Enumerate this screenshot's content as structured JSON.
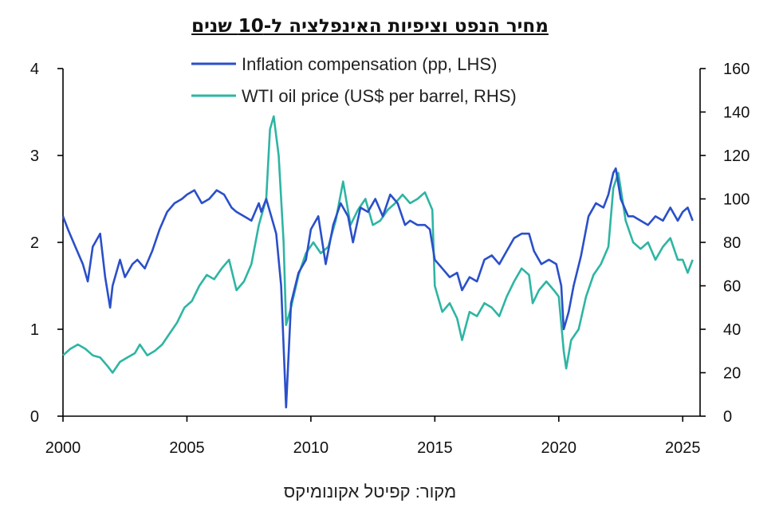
{
  "chart_data": {
    "type": "line",
    "title": "מחיר הנפט וציפיות האינפלציה ל-10 שנים",
    "source": "מקור: קפיטל אקונומיקס",
    "legend_placement": "top-center",
    "grid": false,
    "x_axis": {
      "range": [
        2000,
        2025.7
      ],
      "ticks": [
        "2000",
        "2005",
        "2010",
        "2015",
        "2020",
        "2025"
      ]
    },
    "y_left": {
      "range": [
        0,
        4
      ],
      "ticks": [
        "0",
        "1",
        "2",
        "3",
        "4"
      ]
    },
    "y_right": {
      "range": [
        0,
        160
      ],
      "ticks": [
        "0",
        "20",
        "40",
        "60",
        "80",
        "100",
        "120",
        "140",
        "160"
      ]
    },
    "series": [
      {
        "name": "Inflation compensation (pp, LHS)",
        "axis": "left",
        "color": "#2a4fc9",
        "x": [
          2000.0,
          2000.2,
          2000.5,
          2000.8,
          2001.0,
          2001.2,
          2001.5,
          2001.7,
          2001.9,
          2002.0,
          2002.3,
          2002.5,
          2002.8,
          2003.0,
          2003.3,
          2003.6,
          2003.9,
          2004.2,
          2004.5,
          2004.8,
          2005.0,
          2005.3,
          2005.6,
          2005.9,
          2006.2,
          2006.5,
          2006.8,
          2007.0,
          2007.3,
          2007.6,
          2007.9,
          2008.0,
          2008.2,
          2008.4,
          2008.6,
          2008.8,
          2008.9,
          2009.0,
          2009.2,
          2009.5,
          2009.8,
          2010.0,
          2010.3,
          2010.6,
          2010.9,
          2011.2,
          2011.5,
          2011.7,
          2012.0,
          2012.3,
          2012.6,
          2012.9,
          2013.2,
          2013.5,
          2013.8,
          2014.0,
          2014.3,
          2014.6,
          2014.8,
          2015.0,
          2015.3,
          2015.6,
          2015.9,
          2016.1,
          2016.4,
          2016.7,
          2017.0,
          2017.3,
          2017.6,
          2017.9,
          2018.2,
          2018.5,
          2018.8,
          2019.0,
          2019.3,
          2019.6,
          2019.9,
          2020.1,
          2020.2,
          2020.4,
          2020.6,
          2020.9,
          2021.2,
          2021.5,
          2021.8,
          2022.0,
          2022.2,
          2022.3,
          2022.5,
          2022.8,
          2023.0,
          2023.3,
          2023.6,
          2023.9,
          2024.2,
          2024.5,
          2024.8,
          2025.0,
          2025.2,
          2025.4
        ],
        "values": [
          2.3,
          2.15,
          1.95,
          1.75,
          1.55,
          1.95,
          2.1,
          1.6,
          1.25,
          1.5,
          1.8,
          1.6,
          1.75,
          1.8,
          1.7,
          1.9,
          2.15,
          2.35,
          2.45,
          2.5,
          2.55,
          2.6,
          2.45,
          2.5,
          2.6,
          2.55,
          2.4,
          2.35,
          2.3,
          2.25,
          2.45,
          2.35,
          2.5,
          2.3,
          2.1,
          1.5,
          0.8,
          0.1,
          1.3,
          1.65,
          1.8,
          2.15,
          2.3,
          1.75,
          2.2,
          2.45,
          2.3,
          2.0,
          2.4,
          2.35,
          2.5,
          2.3,
          2.55,
          2.45,
          2.2,
          2.25,
          2.2,
          2.2,
          2.15,
          1.8,
          1.7,
          1.6,
          1.65,
          1.45,
          1.6,
          1.55,
          1.8,
          1.85,
          1.75,
          1.9,
          2.05,
          2.1,
          2.1,
          1.9,
          1.75,
          1.8,
          1.75,
          1.5,
          1.0,
          1.2,
          1.5,
          1.85,
          2.3,
          2.45,
          2.4,
          2.55,
          2.8,
          2.85,
          2.5,
          2.3,
          2.3,
          2.25,
          2.2,
          2.3,
          2.25,
          2.4,
          2.25,
          2.35,
          2.4,
          2.25
        ]
      },
      {
        "name": "WTI oil price (US$ per barrel, RHS)",
        "axis": "right",
        "color": "#2eb5a3",
        "x": [
          2000.0,
          2000.3,
          2000.6,
          2000.9,
          2001.2,
          2001.5,
          2001.8,
          2002.0,
          2002.3,
          2002.6,
          2002.9,
          2003.1,
          2003.4,
          2003.7,
          2004.0,
          2004.3,
          2004.6,
          2004.9,
          2005.2,
          2005.5,
          2005.8,
          2006.1,
          2006.4,
          2006.7,
          2007.0,
          2007.3,
          2007.6,
          2007.9,
          2008.2,
          2008.35,
          2008.5,
          2008.7,
          2008.9,
          2009.0,
          2009.2,
          2009.5,
          2009.8,
          2010.1,
          2010.4,
          2010.7,
          2011.0,
          2011.3,
          2011.6,
          2011.9,
          2012.2,
          2012.5,
          2012.8,
          2013.1,
          2013.4,
          2013.7,
          2014.0,
          2014.3,
          2014.6,
          2014.9,
          2015.0,
          2015.3,
          2015.6,
          2015.9,
          2016.1,
          2016.4,
          2016.7,
          2017.0,
          2017.3,
          2017.6,
          2017.9,
          2018.2,
          2018.5,
          2018.8,
          2018.95,
          2019.2,
          2019.5,
          2019.8,
          2020.0,
          2020.2,
          2020.3,
          2020.5,
          2020.8,
          2021.1,
          2021.4,
          2021.7,
          2022.0,
          2022.2,
          2022.4,
          2022.7,
          2023.0,
          2023.3,
          2023.6,
          2023.9,
          2024.2,
          2024.5,
          2024.8,
          2025.0,
          2025.2,
          2025.4
        ],
        "values": [
          28,
          31,
          33,
          31,
          28,
          27,
          23,
          20,
          25,
          27,
          29,
          33,
          28,
          30,
          33,
          38,
          43,
          50,
          53,
          60,
          65,
          63,
          68,
          72,
          58,
          62,
          70,
          88,
          100,
          132,
          138,
          120,
          80,
          42,
          50,
          65,
          75,
          80,
          75,
          78,
          90,
          108,
          88,
          95,
          100,
          88,
          90,
          95,
          98,
          102,
          98,
          100,
          103,
          95,
          60,
          48,
          52,
          45,
          35,
          48,
          46,
          52,
          50,
          46,
          55,
          62,
          68,
          65,
          52,
          58,
          62,
          58,
          55,
          30,
          22,
          35,
          40,
          55,
          65,
          70,
          78,
          105,
          112,
          90,
          80,
          77,
          80,
          72,
          78,
          82,
          72,
          72,
          66,
          72
        ]
      }
    ]
  }
}
